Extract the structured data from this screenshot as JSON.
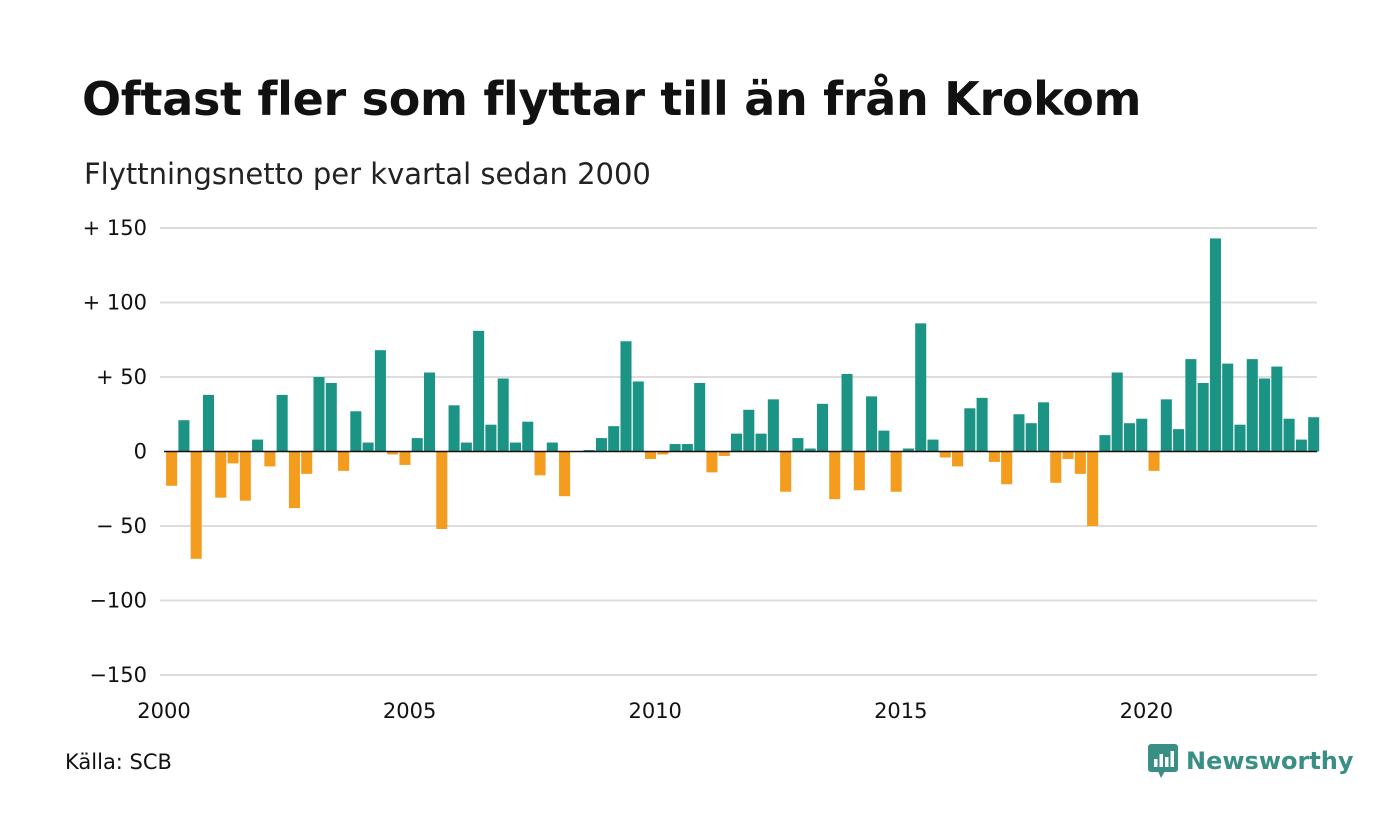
{
  "header": {
    "title": "Oftast fler som flyttar till än från Krokom",
    "subtitle": "Flyttningsnetto per kvartal sedan 2000"
  },
  "footer": {
    "source": "Källa: SCB",
    "brand": "Newsworthy",
    "brand_icon": "newsworthy-chart-bubble-icon"
  },
  "colors": {
    "positive": "#1b9486",
    "negative": "#f39c1e",
    "grid": "#dddddd",
    "brand": "#3a8f85"
  },
  "chart_data": {
    "type": "bar",
    "title": "Oftast fler som flyttar till än från Krokom",
    "subtitle": "Flyttningsnetto per kvartal sedan 2000",
    "x_start": "2000 Q1",
    "frequency": "quarter",
    "ylim": [
      -150,
      150
    ],
    "y_ticks": [
      {
        "value": 150,
        "label": "+ 150"
      },
      {
        "value": 100,
        "label": "+ 100"
      },
      {
        "value": 50,
        "label": "+  50"
      },
      {
        "value": 0,
        "label": "0"
      },
      {
        "value": -50,
        "label": "− 50"
      },
      {
        "value": -100,
        "label": "−100"
      },
      {
        "value": -150,
        "label": "−150"
      }
    ],
    "x_ticks": [
      {
        "value": 2000,
        "label": "2000"
      },
      {
        "value": 2005,
        "label": "2005"
      },
      {
        "value": 2010,
        "label": "2010"
      },
      {
        "value": 2015,
        "label": "2015"
      },
      {
        "value": 2020,
        "label": "2020"
      }
    ],
    "grid": true,
    "legend": "none",
    "values": [
      -23,
      21,
      -72,
      38,
      -31,
      -8,
      -33,
      8,
      -10,
      38,
      -38,
      -15,
      50,
      46,
      -13,
      27,
      6,
      68,
      -2,
      -9,
      9,
      53,
      -52,
      31,
      6,
      81,
      18,
      49,
      6,
      20,
      -16,
      6,
      -30,
      0,
      1,
      9,
      17,
      74,
      47,
      -5,
      -2,
      5,
      5,
      46,
      -14,
      -3,
      12,
      28,
      12,
      35,
      -27,
      9,
      2,
      32,
      -32,
      52,
      -26,
      37,
      14,
      -27,
      2,
      86,
      8,
      -4,
      -10,
      29,
      36,
      -7,
      -22,
      25,
      19,
      33,
      -21,
      -5,
      -15,
      -50,
      11,
      53,
      19,
      22,
      -13,
      35,
      15,
      62,
      46,
      143,
      59,
      18,
      62,
      49,
      57,
      22,
      8,
      23
    ]
  }
}
